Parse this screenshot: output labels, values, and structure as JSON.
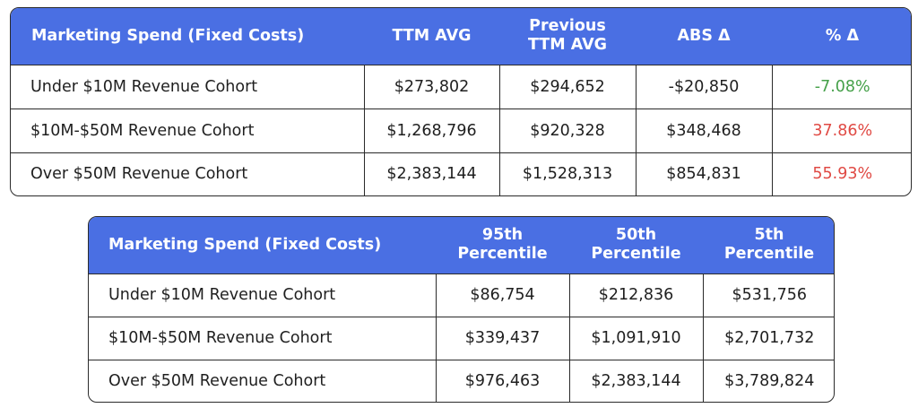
{
  "table1": {
    "headers": [
      "Marketing Spend (Fixed Costs)",
      "TTM AVG",
      "Previous TTM AVG",
      "ABS Δ",
      "% Δ"
    ],
    "rows": [
      {
        "label": "Under $10M Revenue Cohort",
        "ttm": "$273,802",
        "prev": "$294,652",
        "abs": "-$20,850",
        "pct": "-7.08%"
      },
      {
        "label": "$10M-$50M Revenue Cohort",
        "ttm": "$1,268,796",
        "prev": "$920,328",
        "abs": "$348,468",
        "pct": "37.86%"
      },
      {
        "label": "Over $50M Revenue Cohort",
        "ttm": "$2,383,144",
        "prev": "$1,528,313",
        "abs": "$854,831",
        "pct": "55.93%"
      }
    ]
  },
  "table2": {
    "headers": [
      "Marketing Spend (Fixed Costs)",
      "95th Percentile",
      "50th Percentile",
      "5th Percentile"
    ],
    "rows": [
      {
        "label": "Under $10M Revenue Cohort",
        "p95": "$86,754",
        "p50": "$212,836",
        "p5": "$531,756"
      },
      {
        "label": "$10M-$50M Revenue Cohort",
        "p95": "$339,437",
        "p50": "$1,091,910",
        "p5": "$2,701,732"
      },
      {
        "label": "Over $50M Revenue Cohort",
        "p95": "$976,463",
        "p50": "$2,383,144",
        "p5": "$3,789,824"
      }
    ]
  },
  "colors": {
    "header_bg": "#4a6fe3",
    "negative_change": "#45a049",
    "positive_change": "#e04a44"
  }
}
